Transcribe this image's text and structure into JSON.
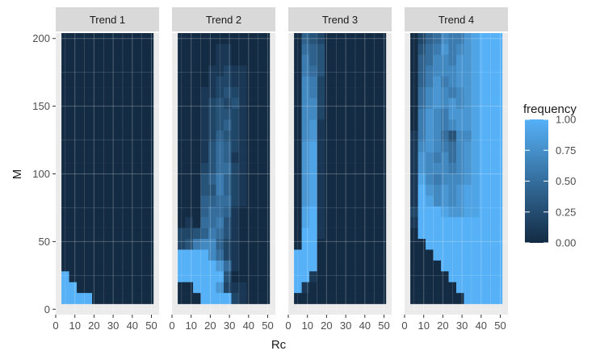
{
  "chart_data": {
    "type": "heatmap",
    "facets": [
      "Trend 1",
      "Trend 2",
      "Trend 3",
      "Trend 4"
    ],
    "xlabel": "Rc",
    "ylabel": "M",
    "xlim": [
      0,
      54
    ],
    "ylim": [
      -4,
      204
    ],
    "x_ticks": [
      0,
      10,
      20,
      30,
      40,
      50
    ],
    "y_ticks": [
      0,
      50,
      100,
      150,
      200
    ],
    "x_tick_labels": [
      "0",
      "10",
      "20",
      "30",
      "40",
      "50"
    ],
    "y_tick_labels": [
      "0",
      "50",
      "100",
      "150",
      "200"
    ],
    "grid": true,
    "cell_width": 4,
    "cell_height": 8,
    "x_centers": [
      5,
      9,
      13,
      17,
      21,
      25,
      29,
      33,
      37,
      41,
      45,
      49
    ],
    "y_centers": [
      8,
      16,
      24,
      32,
      40,
      48,
      56,
      64,
      72,
      80,
      88,
      96,
      104,
      112,
      120,
      128,
      136,
      144,
      152,
      160,
      168,
      176,
      184,
      192,
      200
    ],
    "frequency_rows_note": "one string per M row (top row = M 200, bottom row = M 8); each character is one Rc column (x 5..49): 0=0.00 1=0.10 2=0.20 3=0.30 4=0.40 5=0.50 6=0.60 7=0.70 8=0.80 9=0.90 A=1.00",
    "frequency_rows": [
      [
        "000000000000",
        "000000000000",
        "000000000000",
        "000000000000",
        "000000000000",
        "000000000000",
        "000000000000",
        "000000000000",
        "000000000000",
        "000000000000",
        "000000000000",
        "000000000000",
        "000000000000",
        "000000000000",
        "000000000000",
        "000000000000",
        "000000000000",
        "000000000000",
        "000000000000",
        "000000000000",
        "000000000000",
        "000000000000",
        "A00000000000",
        "AA0000000000",
        "AAAA00000000"
      ],
      [
        "000000000000",
        "000001100000",
        "000001100000",
        "000011211000",
        "000012211000",
        "000112321000",
        "000123231000",
        "000123321000",
        "000123421000",
        "000124321000",
        "000135421000",
        "000135411000",
        "000235521000",
        "000346421000",
        "000336421000",
        "000445521000",
        "000455410000",
        "010556310000",
        "223465310000",
        "236774210000",
        "AAAA75210000",
        "AAAAA8510000",
        "AAAAAA300000",
        "00AAA8211000",
        "000AAAA21000"
      ],
      [
        "043200000000",
        "054300000000",
        "064300000000",
        "065300000000",
        "076200000000",
        "076200000000",
        "077200000000",
        "077200000000",
        "078100000000",
        "078100000000",
        "089100000000",
        "089100000000",
        "089100000000",
        "089100000000",
        "089100000000",
        "089100000000",
        "09A100000000",
        "09A100000000",
        "0AA100000000",
        "0AA000000000",
        "AAA000000000",
        "AAA000000000",
        "AA1000000000",
        "A10000000000",
        "000000000000"
      ],
      [
        "024576689AAA",
        "035686789AAA",
        "045776889AAA",
        "046777889AAA",
        "046867889AAA",
        "057876789AAA",
        "057878789AAA",
        "068768889AAA",
        "068767889AAA",
        "168753779AAA",
        "178765789AAA",
        "187675789AAA",
        "187776789AAA",
        "197677789AAA",
        "1A8787899AAA",
        "1A9787899AAA",
        "2AAA98899AAA",
        "1AAAAAAAAAAA",
        "0AAAAAAAAAAA",
        "00AAAAAAAAAA",
        "000AAAAAAAAA",
        "0000AAAAAAAA",
        "00000AAAAAAA",
        "000000AAAAAA",
        "0000000AAAAA"
      ]
    ],
    "color_scale": {
      "title": "frequency",
      "low": "#132b43",
      "high": "#56b1f7",
      "breaks": [
        0,
        0.25,
        0.5,
        0.75,
        1
      ],
      "labels": [
        "0.00",
        "0.25",
        "0.50",
        "0.75",
        "1.00"
      ]
    }
  },
  "colors": {
    "panel_background": "#ebebeb",
    "strip_background": "#d9d9d9",
    "grid_line": "#ffffff",
    "tick_text": "#4d4d4d",
    "title_text": "#1a1a1a"
  }
}
